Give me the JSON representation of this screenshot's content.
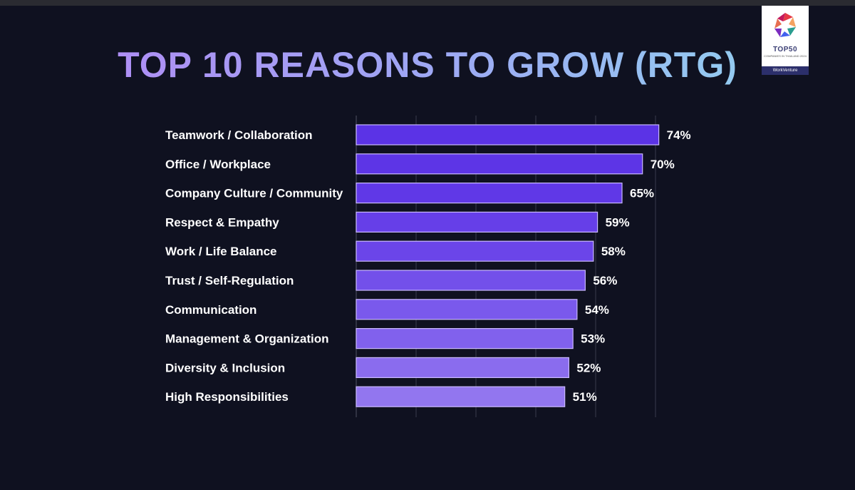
{
  "chart_data": {
    "type": "bar",
    "orientation": "horizontal",
    "title": "TOP 10 REASONS TO GROW (RTG)",
    "categories": [
      "Teamwork / Collaboration",
      "Office / Workplace",
      "Company Culture / Community",
      "Respect & Empathy",
      "Work / Life Balance",
      "Trust / Self-Regulation",
      "Communication",
      "Management & Organization",
      "Diversity & Inclusion",
      "High Responsibilities"
    ],
    "values": [
      74,
      70,
      65,
      59,
      58,
      56,
      54,
      53,
      52,
      51
    ],
    "value_labels": [
      "74%",
      "70%",
      "65%",
      "59%",
      "58%",
      "56%",
      "54%",
      "53%",
      "52%",
      "51%"
    ],
    "xlim": [
      0,
      80
    ],
    "grid": true,
    "bar_colors": [
      "#5b33e6",
      "#5d35e6",
      "#6038e7",
      "#663fe8",
      "#6b45e9",
      "#7350ea",
      "#7a59ec",
      "#8161ed",
      "#8a6cee",
      "#9276ef"
    ],
    "xlabel": "",
    "ylabel": ""
  },
  "logo": {
    "top_text": "TOP50",
    "sub_text": "COMPANIES IN THAILAND 2024",
    "brand": "WorkVenture"
  },
  "colors": {
    "background": "#0f1120",
    "grid": "#3a3c4c"
  }
}
